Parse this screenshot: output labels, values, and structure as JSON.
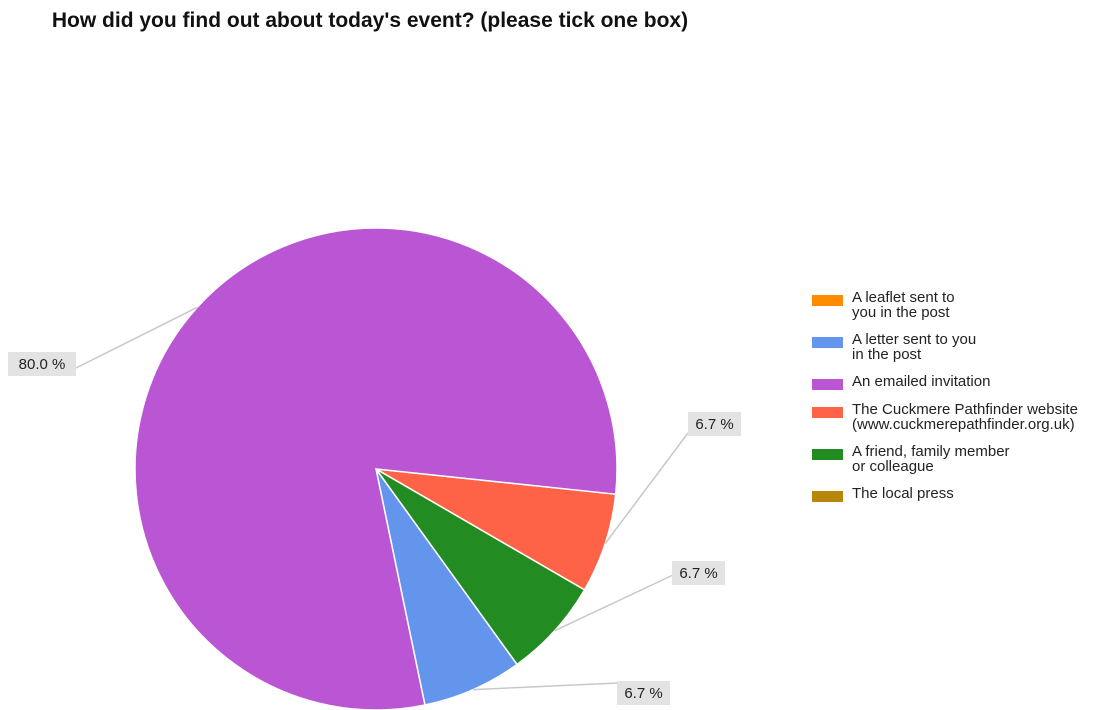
{
  "chart_data": {
    "type": "pie",
    "title": "How did you find out about today's event? (please tick one box)",
    "slices": [
      {
        "label": "A leaflet sent to you in the post",
        "value": 0,
        "color": "#ff8c00",
        "pct_label": ""
      },
      {
        "label": "A letter sent to you in the post",
        "value": 6.7,
        "color": "#6495ed",
        "pct_label": "6.7 %"
      },
      {
        "label": "An emailed invitation",
        "value": 80.0,
        "color": "#ba55d3",
        "pct_label": "80.0 %"
      },
      {
        "label": "The Cuckmere Pathfinder website (www.cuckmerepathfinder.org.uk)",
        "value": 6.7,
        "color": "#ff6347",
        "pct_label": "6.7 %"
      },
      {
        "label": "A friend, family member or colleague",
        "value": 6.7,
        "color": "#228b22",
        "pct_label": "6.7 %"
      },
      {
        "label": "The local press",
        "value": 0,
        "color": "#b8860b",
        "pct_label": ""
      }
    ],
    "legend_position": "right"
  }
}
